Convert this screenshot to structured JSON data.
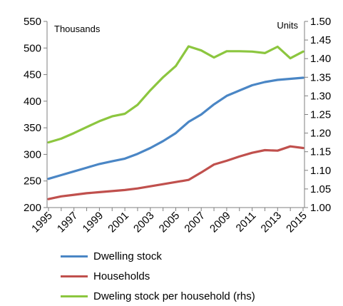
{
  "chart_data": {
    "type": "line",
    "left_unit_label": "Thousands",
    "right_unit_label": "Units",
    "x": [
      1995,
      1996,
      1997,
      1998,
      1999,
      2000,
      2001,
      2002,
      2003,
      2004,
      2005,
      2006,
      2007,
      2008,
      2009,
      2010,
      2011,
      2012,
      2013,
      2014,
      2015
    ],
    "xticks": [
      "1995",
      "1997",
      "1999",
      "2001",
      "2003",
      "2005",
      "2007",
      "2009",
      "2011",
      "2013",
      "2015"
    ],
    "y_left": {
      "min": 200,
      "max": 550,
      "step": 50,
      "ticks": [
        "200",
        "250",
        "300",
        "350",
        "400",
        "450",
        "500",
        "550"
      ]
    },
    "y_right": {
      "min": 1.0,
      "max": 1.5,
      "step": 0.05,
      "ticks": [
        "1.00",
        "1.05",
        "1.10",
        "1.15",
        "1.20",
        "1.25",
        "1.30",
        "1.35",
        "1.40",
        "1.45",
        "1.50"
      ]
    },
    "series": [
      {
        "name": "Dwelling stock",
        "axis": "left",
        "color": "#4a86c5",
        "values": [
          254,
          261,
          268,
          275,
          282,
          287,
          292,
          301,
          312,
          325,
          340,
          361,
          375,
          394,
          410,
          420,
          430,
          436,
          440,
          442,
          444
        ]
      },
      {
        "name": "Households",
        "axis": "left",
        "color": "#c0504d",
        "values": [
          216,
          221,
          224,
          227,
          229,
          231,
          233,
          236,
          240,
          244,
          248,
          252,
          266,
          281,
          288,
          296,
          303,
          308,
          307,
          315,
          312
        ]
      },
      {
        "name": "Dweling stock per household (rhs)",
        "axis": "right",
        "color": "#8cc63f",
        "values": [
          1.175,
          1.185,
          1.2,
          1.216,
          1.232,
          1.245,
          1.252,
          1.276,
          1.315,
          1.35,
          1.38,
          1.433,
          1.422,
          1.403,
          1.42,
          1.42,
          1.419,
          1.415,
          1.432,
          1.401,
          1.419
        ]
      }
    ],
    "grid": false,
    "legend_position": "bottom"
  }
}
